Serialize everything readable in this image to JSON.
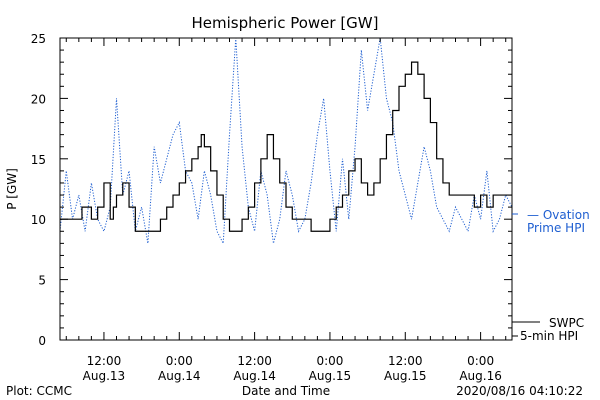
{
  "chart_data": {
    "type": "line",
    "title": "Hemispheric Power [GW]",
    "ylabel": "P [GW]",
    "xlabel": "Date and Time",
    "ylim": [
      0,
      25
    ],
    "yticks": [
      0,
      5,
      10,
      15,
      20,
      25
    ],
    "xticks": [
      {
        "time": "12:00",
        "date": "Aug.13"
      },
      {
        "time": "0:00",
        "date": "Aug.14"
      },
      {
        "time": "12:00",
        "date": "Aug.14"
      },
      {
        "time": "0:00",
        "date": "Aug.15"
      },
      {
        "time": "12:00",
        "date": "Aug.15"
      },
      {
        "time": "0:00",
        "date": "Aug.16"
      }
    ],
    "xlim_hours": [
      -7,
      65
    ],
    "footer_left": "Plot: CCMC",
    "footer_right": "2020/08/16 04:10:22",
    "legend": [
      {
        "label_line1": "— Ovation",
        "label_line2": "Prime HPI",
        "color": "#1f5fd1",
        "style": "dotted"
      },
      {
        "label_line1": "SWPC",
        "label_line2": "5-min HPI",
        "color": "#000000",
        "style": "solid"
      }
    ],
    "series": [
      {
        "name": "SWPC 5-min HPI",
        "color": "#000000",
        "style": "step",
        "x": [
          -7,
          -3.5,
          -2,
          -1,
          0,
          1,
          1.5,
          2,
          3,
          4,
          5,
          6,
          7,
          8,
          9,
          10,
          11,
          12,
          13,
          14,
          15,
          15.5,
          16,
          17,
          18,
          19,
          20,
          21,
          22,
          23,
          24,
          25,
          26,
          27,
          28,
          29,
          30,
          31,
          32,
          33,
          34,
          35,
          36,
          37,
          38,
          39,
          40,
          41,
          42,
          43,
          44,
          45,
          46,
          47,
          48,
          49,
          50,
          51,
          52,
          53,
          54,
          55,
          56,
          57,
          58,
          59,
          60,
          61,
          62,
          63,
          64,
          65
        ],
        "values": [
          10,
          11,
          10,
          11,
          13,
          10,
          11,
          12,
          13,
          11,
          9,
          9,
          9,
          9,
          10,
          11,
          12,
          13,
          14,
          15,
          16,
          17,
          16,
          14,
          12,
          10,
          9,
          9,
          10,
          11,
          13,
          15,
          17,
          15,
          13,
          11,
          10,
          10,
          10,
          9,
          9,
          9,
          10,
          11,
          12,
          14,
          15,
          13,
          12,
          13,
          15,
          17,
          19,
          21,
          22,
          23,
          22,
          20,
          18,
          15,
          13,
          12,
          12,
          12,
          12,
          11,
          12,
          11,
          12,
          12,
          12,
          12
        ]
      },
      {
        "name": "Ovation Prime HPI",
        "color": "#1f5fd1",
        "style": "dotted",
        "x": [
          -7,
          -6,
          -5,
          -4,
          -3,
          -2,
          -1,
          0,
          1,
          2,
          3,
          4,
          5,
          6,
          7,
          8,
          9,
          10,
          11,
          12,
          13,
          14,
          15,
          16,
          17,
          18,
          19,
          20,
          21,
          22,
          23,
          24,
          25,
          26,
          27,
          28,
          29,
          30,
          31,
          32,
          33,
          34,
          35,
          36,
          37,
          38,
          39,
          40,
          41,
          42,
          43,
          44,
          45,
          46,
          47,
          48,
          49,
          50,
          51,
          52,
          53,
          54,
          55,
          56,
          57,
          58,
          59,
          60,
          61,
          62,
          63,
          64,
          65
        ],
        "values": [
          9,
          14,
          10,
          12,
          9,
          13,
          10,
          9,
          11,
          20,
          12,
          14,
          9,
          11,
          8,
          16,
          13,
          15,
          17,
          18,
          14,
          13,
          10,
          14,
          12,
          9,
          8,
          17,
          25,
          16,
          11,
          9,
          14,
          12,
          8,
          10,
          14,
          12,
          9,
          10,
          13,
          17,
          20,
          14,
          9,
          15,
          10,
          16,
          24,
          19,
          22,
          25,
          20,
          18,
          14,
          12,
          10,
          13,
          16,
          14,
          11,
          10,
          9,
          11,
          10,
          9,
          12,
          10,
          14,
          9,
          10,
          12,
          11
        ]
      }
    ]
  }
}
